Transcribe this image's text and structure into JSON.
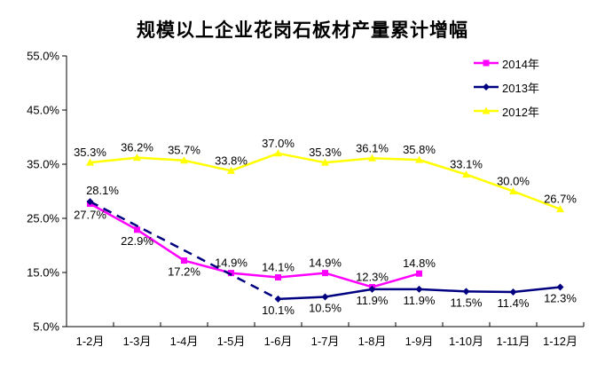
{
  "chart_data": {
    "type": "line",
    "title": "规模以上企业花岗石板材产量累计增幅",
    "xlabel": "",
    "ylabel": "",
    "grid": false,
    "legend_position": "top-right",
    "categories": [
      "1-2月",
      "1-3月",
      "1-4月",
      "1-5月",
      "1-6月",
      "1-7月",
      "1-8月",
      "1-9月",
      "1-10月",
      "1-11月",
      "1-12月"
    ],
    "y_axis": {
      "unit": "%",
      "min": 5.0,
      "max": 55.0,
      "tick_step": 10.0,
      "ticks": [
        "55.0%",
        "45.0%",
        "35.0%",
        "25.0%",
        "15.0%",
        "5.0%"
      ]
    },
    "series": [
      {
        "name": "2014年",
        "color": "#FF00FF",
        "marker": "square",
        "line_style": "solid",
        "gap_style": "none",
        "values": [
          27.7,
          22.9,
          17.2,
          14.9,
          14.1,
          14.9,
          12.3,
          14.8,
          null,
          null,
          null
        ],
        "labels": [
          "27.7%",
          "22.9%",
          "17.2%",
          "14.9%",
          "14.1%",
          "14.9%",
          "12.3%",
          "14.8%",
          "",
          "",
          ""
        ],
        "label_pos": [
          "below",
          "below",
          "below",
          "above",
          "above",
          "above",
          "above",
          "above",
          "",
          "",
          ""
        ]
      },
      {
        "name": "2013年",
        "color": "#000080",
        "marker": "diamond",
        "line_style": "solid",
        "gap_style": "dashed",
        "values": [
          28.1,
          null,
          null,
          null,
          10.1,
          10.5,
          11.9,
          11.9,
          11.5,
          11.4,
          12.3
        ],
        "labels": [
          "28.1%",
          "",
          "",
          "",
          "10.1%",
          "10.5%",
          "11.9%",
          "11.9%",
          "11.5%",
          "11.4%",
          "12.3%"
        ],
        "label_pos": [
          "above-right",
          "",
          "",
          "",
          "below",
          "below",
          "below",
          "below",
          "below",
          "below",
          "below"
        ]
      },
      {
        "name": "2012年",
        "color": "#FFFF00",
        "marker": "triangle",
        "line_style": "solid",
        "gap_style": "none",
        "values": [
          35.3,
          36.2,
          35.7,
          33.8,
          37.0,
          35.3,
          36.1,
          35.8,
          33.1,
          30.0,
          26.7
        ],
        "labels": [
          "35.3%",
          "36.2%",
          "35.7%",
          "33.8%",
          "37.0%",
          "35.3%",
          "36.1%",
          "35.8%",
          "33.1%",
          "30.0%",
          "26.7%"
        ],
        "label_pos": [
          "above",
          "above",
          "above",
          "above",
          "above",
          "above",
          "above",
          "above",
          "above",
          "above",
          "above"
        ]
      }
    ]
  }
}
